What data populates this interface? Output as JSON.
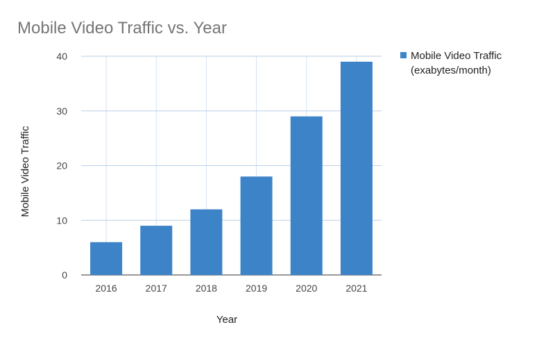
{
  "chart_data": {
    "type": "bar",
    "title": "Mobile Video Traffic vs. Year",
    "xlabel": "Year",
    "ylabel": "Mobile Video Traffic",
    "categories": [
      "2016",
      "2017",
      "2018",
      "2019",
      "2020",
      "2021"
    ],
    "series": [
      {
        "name": "Mobile Video Traffic (exabytes/month)",
        "legend_lines": [
          "Mobile Video Traffic",
          "(exabytes/month)"
        ],
        "color": "#3d83c8",
        "values": [
          6,
          9,
          12,
          18,
          29,
          39
        ]
      }
    ],
    "ylim": [
      0,
      40
    ],
    "yticks": [
      "0",
      "10",
      "20",
      "30",
      "40"
    ],
    "grid": true,
    "legend_position": "top-right"
  }
}
